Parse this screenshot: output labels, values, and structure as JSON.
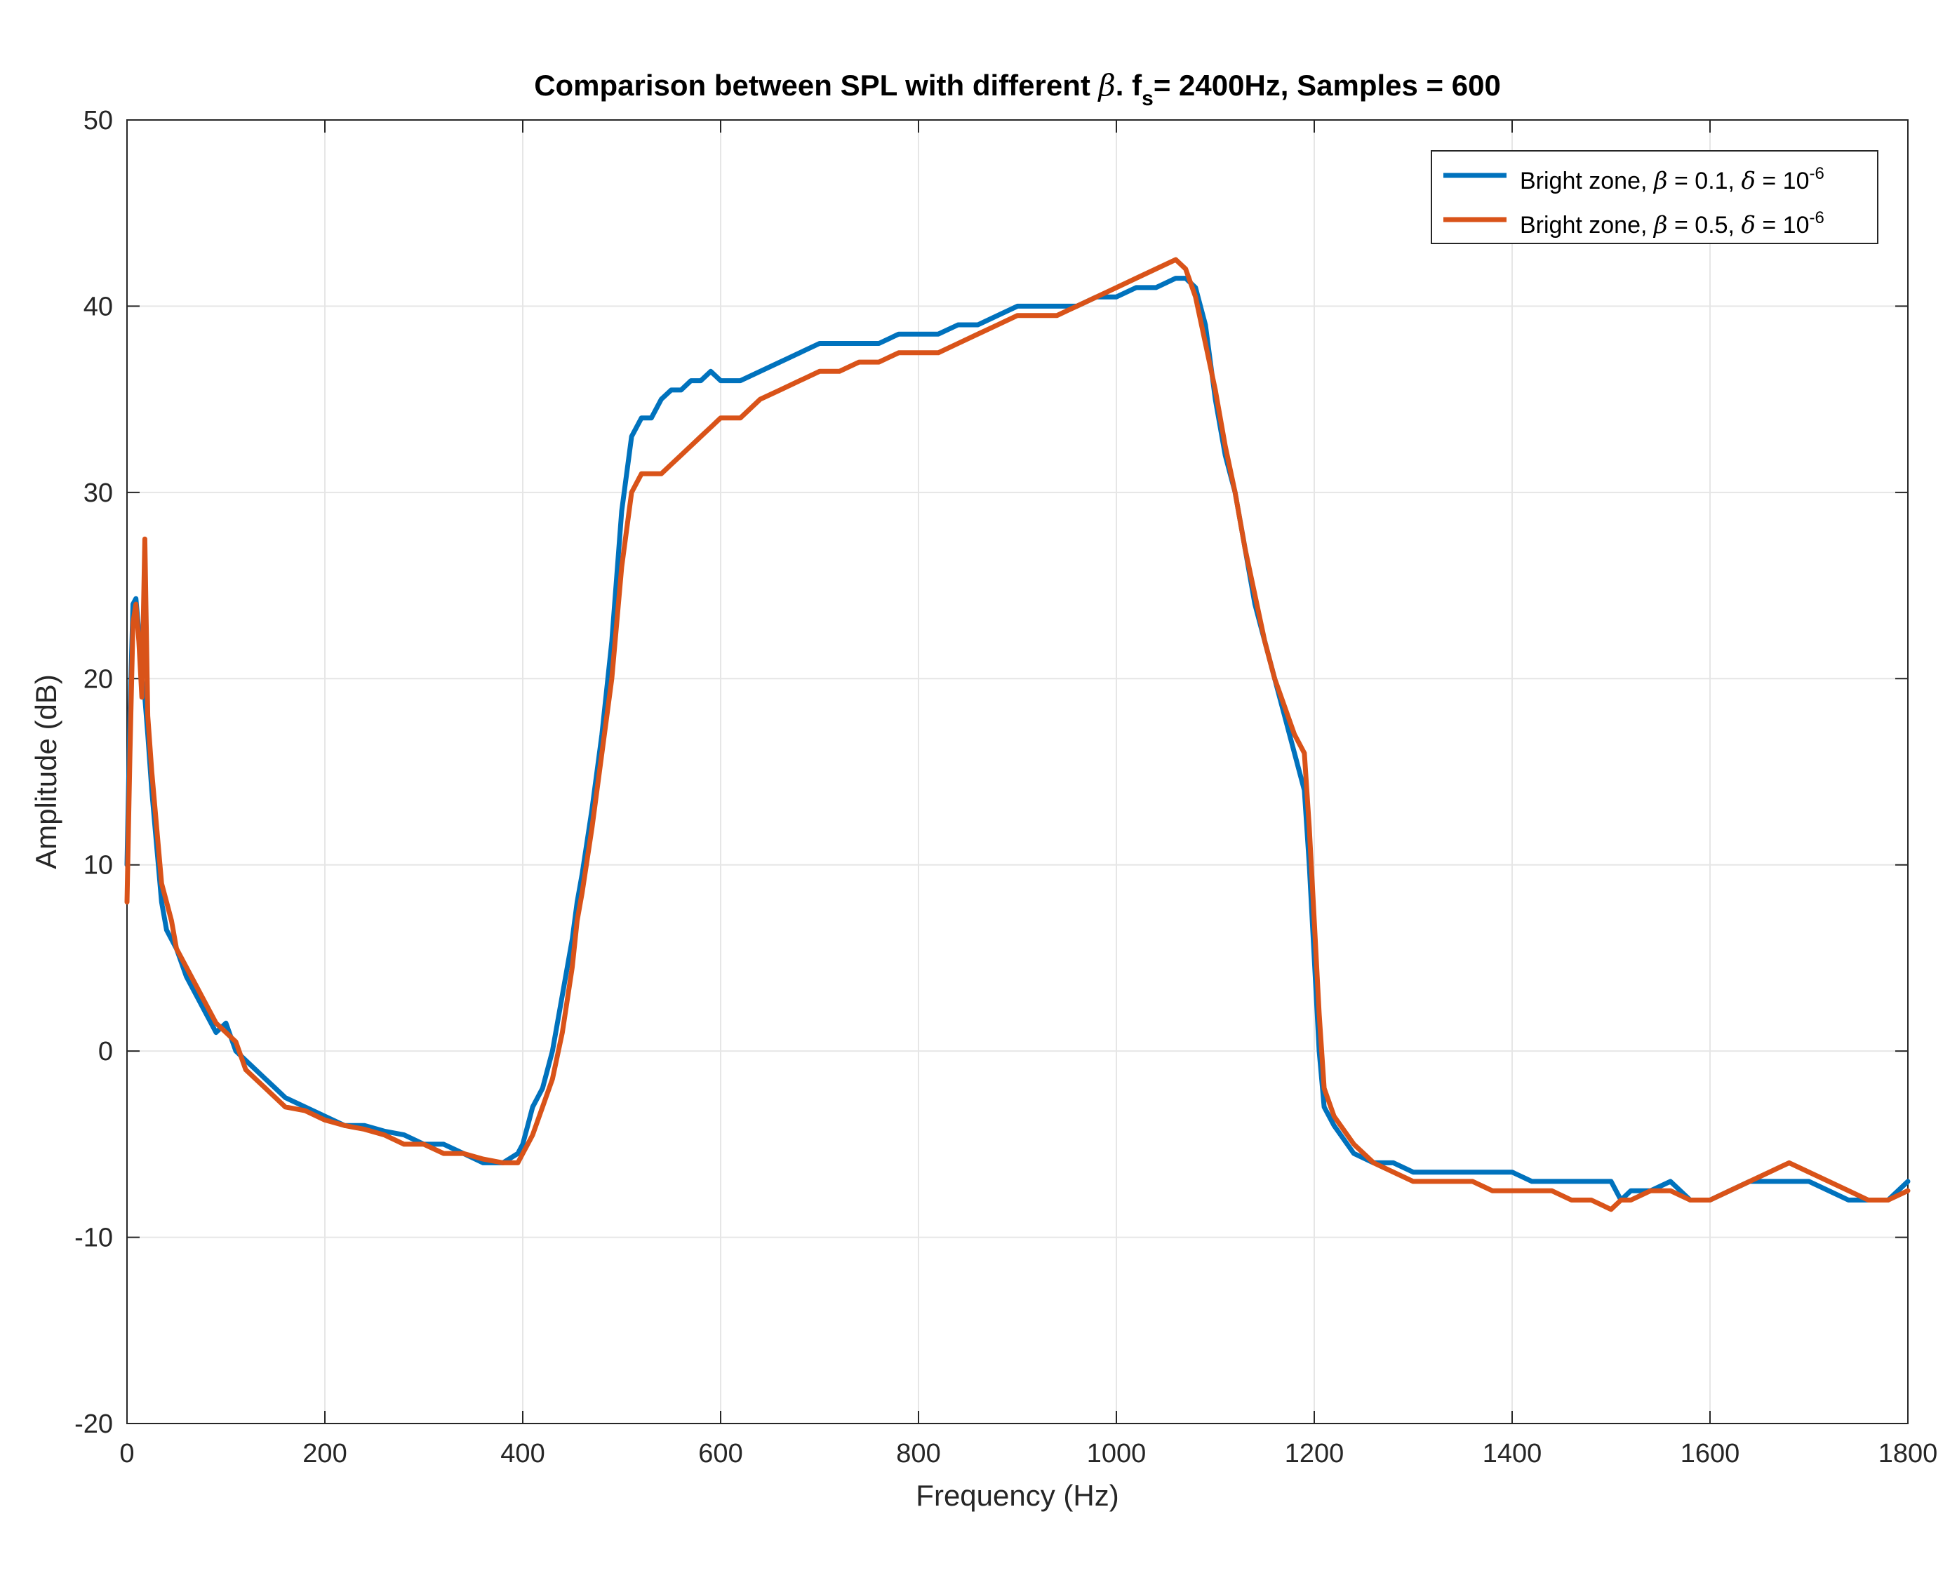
{
  "chart_data": {
    "type": "line",
    "title": {
      "prefix": "Comparison between SPL with different ",
      "symbol": "β",
      "middle": ". f",
      "subscript": "s",
      "suffix": "= 2400Hz, Samples = 600"
    },
    "xlabel": "Frequency (Hz)",
    "ylabel": "Amplitude (dB)",
    "xlim": [
      0,
      1800
    ],
    "ylim": [
      -20,
      50
    ],
    "xticks": [
      "0",
      "200",
      "400",
      "600",
      "800",
      "1000",
      "1200",
      "1400",
      "1600",
      "1800"
    ],
    "yticks": [
      "-20",
      "-10",
      "0",
      "10",
      "20",
      "30",
      "40",
      "50"
    ],
    "grid": true,
    "legend_position": "top-right",
    "series": [
      {
        "name": {
          "prefix": "Bright zone, ",
          "beta_sym": "β",
          "beta_val": " = 0.1,  ",
          "delta_sym": "δ",
          "delta_val": " = 10",
          "exponent": "-6"
        },
        "color": "#0072BD",
        "x": [
          0,
          3,
          6,
          9,
          12,
          15,
          18,
          21,
          25,
          30,
          35,
          40,
          45,
          50,
          60,
          70,
          80,
          90,
          100,
          110,
          120,
          130,
          140,
          150,
          160,
          180,
          200,
          220,
          240,
          260,
          280,
          300,
          320,
          340,
          360,
          380,
          395,
          400,
          405,
          410,
          420,
          430,
          440,
          450,
          455,
          460,
          470,
          480,
          490,
          500,
          510,
          520,
          530,
          540,
          550,
          560,
          570,
          580,
          590,
          600,
          620,
          640,
          660,
          680,
          700,
          720,
          740,
          760,
          780,
          800,
          820,
          840,
          860,
          880,
          900,
          920,
          940,
          960,
          980,
          1000,
          1020,
          1040,
          1060,
          1070,
          1080,
          1090,
          1100,
          1110,
          1120,
          1130,
          1140,
          1150,
          1160,
          1170,
          1180,
          1190,
          1195,
          1200,
          1205,
          1210,
          1220,
          1240,
          1260,
          1280,
          1300,
          1320,
          1340,
          1360,
          1380,
          1400,
          1420,
          1440,
          1460,
          1480,
          1500,
          1510,
          1520,
          1540,
          1560,
          1580,
          1600,
          1620,
          1640,
          1660,
          1680,
          1700,
          1720,
          1740,
          1760,
          1780,
          1800
        ],
        "values": [
          10,
          18,
          24,
          24.3,
          22.5,
          20,
          19,
          17,
          14,
          11,
          8,
          6.5,
          6,
          5.5,
          4,
          3,
          2,
          1,
          1.5,
          0,
          -0.5,
          -1,
          -1.5,
          -2,
          -2.5,
          -3,
          -3.5,
          -4,
          -4,
          -4.3,
          -4.5,
          -5,
          -5,
          -5.5,
          -6,
          -6,
          -5.5,
          -5,
          -4,
          -3,
          -2,
          0,
          3,
          6,
          8,
          9.5,
          13,
          17,
          22,
          29,
          33,
          34,
          34,
          35,
          35.5,
          35.5,
          36,
          36,
          36.5,
          36,
          36,
          36.5,
          37,
          37.5,
          38,
          38,
          38,
          38,
          38.5,
          38.5,
          38.5,
          39,
          39,
          39.5,
          40,
          40,
          40,
          40,
          40.5,
          40.5,
          41,
          41,
          41.5,
          41.5,
          41,
          39,
          35,
          32,
          30,
          27,
          24,
          22,
          20,
          18,
          16,
          14,
          10,
          5,
          0,
          -3,
          -4,
          -5.5,
          -6,
          -6,
          -6.5,
          -6.5,
          -6.5,
          -6.5,
          -6.5,
          -6.5,
          -7,
          -7,
          -7,
          -7,
          -7,
          -8,
          -7.5,
          -7.5,
          -7,
          -8,
          -8,
          -7.5,
          -7,
          -7,
          -7,
          -7,
          -7.5,
          -8,
          -8,
          -8,
          -7
        ]
      },
      {
        "name": {
          "prefix": "Bright zone, ",
          "beta_sym": "β",
          "beta_val": " = 0.5,  ",
          "delta_sym": "δ",
          "delta_val": " = 10",
          "exponent": "-6"
        },
        "color": "#D95319",
        "x": [
          0,
          3,
          6,
          9,
          12,
          15,
          18,
          21,
          25,
          30,
          35,
          40,
          45,
          50,
          60,
          70,
          80,
          90,
          100,
          110,
          120,
          130,
          140,
          150,
          160,
          180,
          200,
          220,
          240,
          260,
          280,
          300,
          320,
          340,
          360,
          380,
          395,
          400,
          405,
          410,
          420,
          430,
          440,
          450,
          455,
          460,
          470,
          480,
          490,
          500,
          510,
          520,
          530,
          540,
          550,
          560,
          570,
          580,
          590,
          600,
          620,
          640,
          660,
          680,
          700,
          720,
          740,
          760,
          780,
          800,
          820,
          840,
          860,
          880,
          900,
          920,
          940,
          960,
          980,
          1000,
          1020,
          1040,
          1060,
          1070,
          1080,
          1090,
          1100,
          1110,
          1120,
          1130,
          1140,
          1150,
          1160,
          1170,
          1180,
          1190,
          1195,
          1200,
          1205,
          1210,
          1220,
          1240,
          1260,
          1280,
          1300,
          1320,
          1340,
          1360,
          1380,
          1400,
          1420,
          1440,
          1460,
          1480,
          1500,
          1510,
          1520,
          1540,
          1560,
          1580,
          1600,
          1620,
          1640,
          1660,
          1680,
          1700,
          1720,
          1740,
          1760,
          1780,
          1800
        ],
        "values": [
          8,
          16,
          23,
          24,
          22,
          19,
          27.5,
          18,
          15,
          12,
          9,
          8,
          7,
          5.5,
          4.5,
          3.5,
          2.5,
          1.5,
          1,
          0.5,
          -1,
          -1.5,
          -2,
          -2.5,
          -3,
          -3.2,
          -3.7,
          -4,
          -4.2,
          -4.5,
          -5,
          -5,
          -5.5,
          -5.5,
          -5.8,
          -6,
          -6,
          -5.5,
          -5,
          -4.5,
          -3,
          -1.5,
          1,
          4.5,
          7,
          8.5,
          12,
          16,
          20,
          26,
          30,
          31,
          31,
          31,
          31.5,
          32,
          32.5,
          33,
          33.5,
          34,
          34,
          35,
          35.5,
          36,
          36.5,
          36.5,
          37,
          37,
          37.5,
          37.5,
          37.5,
          38,
          38.5,
          39,
          39.5,
          39.5,
          39.5,
          40,
          40.5,
          41,
          41.5,
          42,
          42.5,
          42,
          40.5,
          38,
          35.5,
          32.5,
          30,
          27,
          24.5,
          22,
          20,
          18.5,
          17,
          16,
          12,
          7,
          2,
          -2,
          -3.5,
          -5,
          -6,
          -6.5,
          -7,
          -7,
          -7,
          -7,
          -7.5,
          -7.5,
          -7.5,
          -7.5,
          -8,
          -8,
          -8.5,
          -8,
          -8,
          -7.5,
          -7.5,
          -8,
          -8,
          -7.5,
          -7,
          -6.5,
          -6,
          -6.5,
          -7,
          -7.5,
          -8,
          -8,
          -7.5
        ]
      }
    ]
  }
}
